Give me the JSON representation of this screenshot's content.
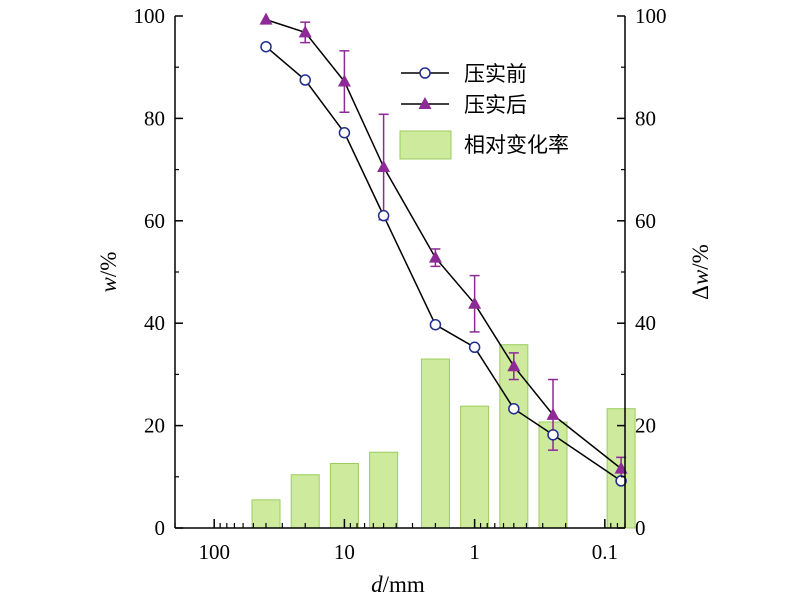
{
  "colors": {
    "before": "#1f2d8f",
    "after": "#8e2a96",
    "bar_fill": "#cdea9d",
    "bar_stroke": "#9ccd5c",
    "line": "#000000"
  },
  "chart_data": {
    "type": "bar+line",
    "x_scale": "log-reversed",
    "xlim": [
      200,
      0.07
    ],
    "ylim": [
      0,
      100
    ],
    "y2lim": [
      0,
      100
    ],
    "xlabel_italic": "d",
    "xlabel_unit": "/mm",
    "ylabel_italic": "w",
    "ylabel_unit": "/%",
    "y2label_prefix": "Δ",
    "y2label_italic": "w",
    "y2label_unit": "/%",
    "x_ticks": [
      {
        "value": 100,
        "label": "100"
      },
      {
        "value": 10,
        "label": "10"
      },
      {
        "value": 1,
        "label": "1"
      },
      {
        "value": 0.1,
        "label": "0.1"
      }
    ],
    "y_ticks": [
      "0",
      "20",
      "40",
      "60",
      "80",
      "100"
    ],
    "y_tick_values": [
      0,
      20,
      40,
      60,
      80,
      100
    ],
    "legend": {
      "position": "top-right",
      "before": "压实前",
      "after": "压实后",
      "change": "相对变化率"
    },
    "series": [
      {
        "name": "压实前",
        "marker": "circle-open",
        "x": [
          40,
          20,
          10,
          5,
          2,
          1,
          0.5,
          0.25,
          0.075
        ],
        "y": [
          94,
          87.5,
          77.2,
          61,
          39.7,
          35.3,
          23.3,
          18.2,
          9.2
        ]
      },
      {
        "name": "压实后",
        "marker": "triangle-filled",
        "x": [
          40,
          20,
          10,
          5,
          2,
          1,
          0.5,
          0.25,
          0.075
        ],
        "y": [
          99.3,
          96.8,
          87.2,
          70.5,
          52.8,
          43.8,
          31.6,
          22.1,
          11.6
        ],
        "err": [
          0,
          2.0,
          6.0,
          10.3,
          1.7,
          5.5,
          2.6,
          6.9,
          2.2
        ]
      },
      {
        "name": "相对变化率",
        "type": "bar",
        "axis": "right",
        "x": [
          40,
          20,
          10,
          5,
          2,
          1,
          0.5,
          0.25,
          0.075
        ],
        "values": [
          5.5,
          10.4,
          12.6,
          14.8,
          33.0,
          23.8,
          35.8,
          20.7,
          23.3
        ]
      }
    ]
  }
}
